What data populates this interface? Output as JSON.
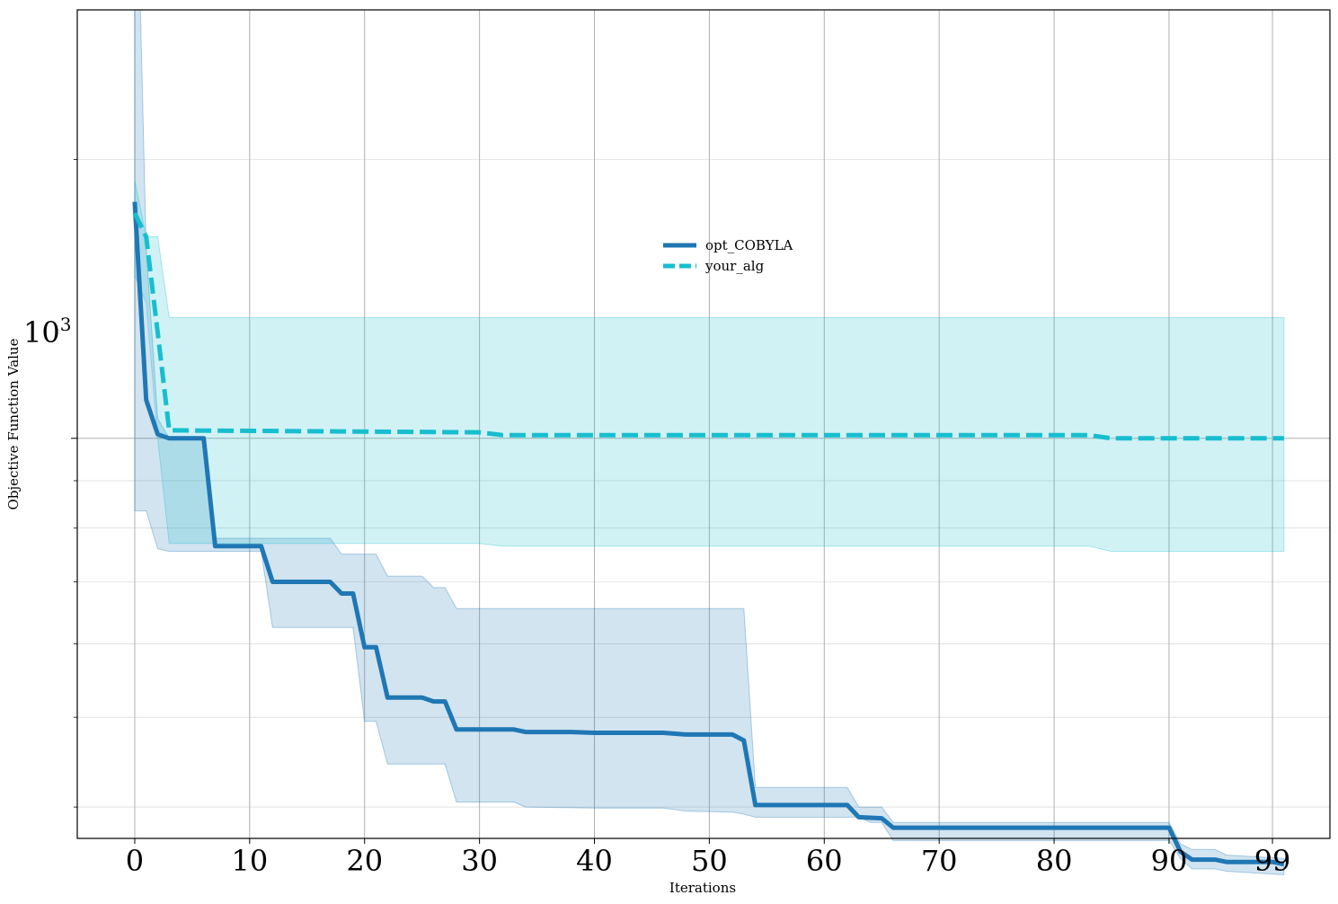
{
  "chart_data": {
    "type": "line",
    "xlabel": "Iterations",
    "ylabel": "Objective Function Value",
    "yscale": "log",
    "xlim": [
      -5,
      104
    ],
    "ylim": [
      370,
      2900
    ],
    "x_ticks": [
      0,
      10,
      20,
      30,
      40,
      50,
      60,
      70,
      80,
      90,
      99
    ],
    "y_major_tick": {
      "value": 1000,
      "base": "10",
      "exponent": "3"
    },
    "y_minor_ticks": [
      400,
      500,
      600,
      700,
      800,
      900,
      2000
    ],
    "grid": true,
    "legend_position": "upper-center",
    "series": [
      {
        "name": "opt_COBYLA",
        "color": "#1f77b4",
        "style": "solid",
        "points": [
          [
            0,
            1800
          ],
          [
            1,
            1100
          ],
          [
            2,
            1010
          ],
          [
            3,
            1000
          ],
          [
            6,
            1000
          ],
          [
            7,
            765
          ],
          [
            11,
            765
          ],
          [
            12,
            700
          ],
          [
            17,
            700
          ],
          [
            18,
            680
          ],
          [
            19,
            680
          ],
          [
            20,
            595
          ],
          [
            21,
            595
          ],
          [
            22,
            525
          ],
          [
            25,
            525
          ],
          [
            26,
            520
          ],
          [
            27,
            520
          ],
          [
            28,
            485
          ],
          [
            33,
            485
          ],
          [
            34,
            482
          ],
          [
            38,
            482
          ],
          [
            40,
            481
          ],
          [
            46,
            481
          ],
          [
            48,
            479
          ],
          [
            52,
            479
          ],
          [
            53,
            472
          ],
          [
            54,
            402
          ],
          [
            62,
            402
          ],
          [
            63,
            390
          ],
          [
            65,
            389
          ],
          [
            66,
            380
          ],
          [
            90,
            380
          ],
          [
            91,
            358
          ],
          [
            92,
            351
          ],
          [
            94,
            351
          ],
          [
            95,
            349
          ],
          [
            99,
            349
          ],
          [
            100,
            347
          ]
        ],
        "band_upper": [
          [
            0,
            2900
          ],
          [
            0.5,
            2900
          ],
          [
            1,
            1600
          ],
          [
            2,
            1050
          ],
          [
            3,
            1000
          ],
          [
            6,
            1000
          ],
          [
            7,
            780
          ],
          [
            17,
            780
          ],
          [
            18,
            750
          ],
          [
            21,
            750
          ],
          [
            22,
            710
          ],
          [
            25,
            710
          ],
          [
            26,
            690
          ],
          [
            27,
            690
          ],
          [
            28,
            655
          ],
          [
            53,
            655
          ],
          [
            54,
            420
          ],
          [
            62,
            420
          ],
          [
            63,
            400
          ],
          [
            65,
            400
          ],
          [
            66,
            385
          ],
          [
            90,
            385
          ],
          [
            91,
            365
          ],
          [
            92,
            360
          ],
          [
            94,
            360
          ],
          [
            95,
            355
          ],
          [
            100,
            352
          ]
        ],
        "band_lower": [
          [
            0,
            835
          ],
          [
            1,
            835
          ],
          [
            2,
            760
          ],
          [
            3,
            755
          ],
          [
            11,
            755
          ],
          [
            12,
            625
          ],
          [
            19,
            625
          ],
          [
            20,
            495
          ],
          [
            21,
            495
          ],
          [
            22,
            445
          ],
          [
            27,
            445
          ],
          [
            28,
            405
          ],
          [
            33,
            405
          ],
          [
            34,
            400
          ],
          [
            40,
            399
          ],
          [
            46,
            399
          ],
          [
            48,
            396
          ],
          [
            52,
            395
          ],
          [
            53,
            393
          ],
          [
            54,
            390
          ],
          [
            63,
            390
          ],
          [
            64,
            385
          ],
          [
            65,
            385
          ],
          [
            66,
            368
          ],
          [
            90,
            368
          ],
          [
            91,
            352
          ],
          [
            92,
            343
          ],
          [
            94,
            343
          ],
          [
            95,
            341
          ],
          [
            100,
            338
          ]
        ]
      },
      {
        "name": "your_alg",
        "color": "#17becf",
        "style": "dashed",
        "points": [
          [
            0,
            1750
          ],
          [
            1,
            1650
          ],
          [
            2,
            1300
          ],
          [
            3,
            1020
          ],
          [
            30,
            1015
          ],
          [
            32,
            1008
          ],
          [
            83,
            1008
          ],
          [
            85,
            1000
          ],
          [
            100,
            1000
          ]
        ],
        "band_upper": [
          [
            0,
            1900
          ],
          [
            1,
            1650
          ],
          [
            2,
            1650
          ],
          [
            3,
            1350
          ],
          [
            100,
            1350
          ]
        ],
        "band_lower": [
          [
            0,
            1500
          ],
          [
            1,
            1400
          ],
          [
            2,
            1000
          ],
          [
            3,
            770
          ],
          [
            30,
            770
          ],
          [
            32,
            765
          ],
          [
            83,
            765
          ],
          [
            85,
            755
          ],
          [
            100,
            755
          ]
        ]
      }
    ]
  }
}
